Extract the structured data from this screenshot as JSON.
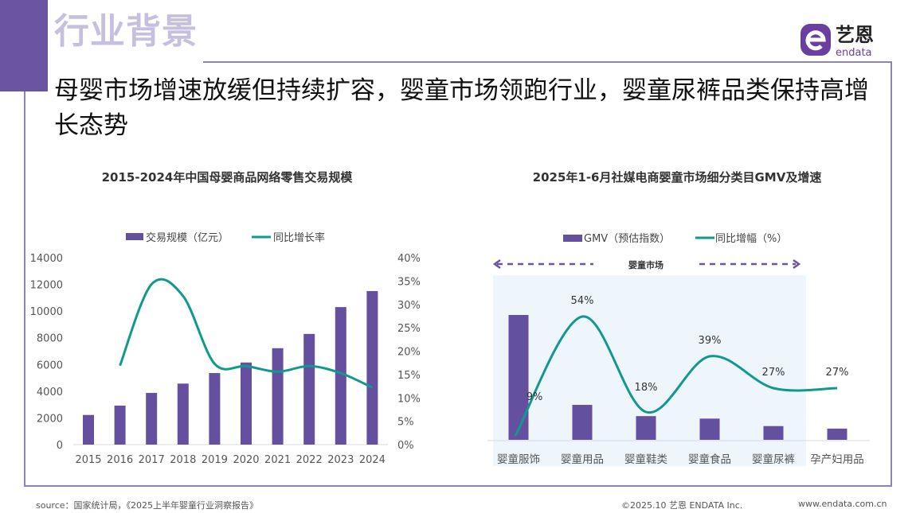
{
  "header": {
    "section_title": "行业背景",
    "headline": "母婴市场增速放缓但持续扩容，婴童市场领跑行业，婴童尿裤品类保持高增长态势",
    "logo_text": "艺恩",
    "logo_subtext": "endata"
  },
  "colors": {
    "accent": "#6a55a3",
    "bar": "#6550a0",
    "line": "#11998e",
    "frame": "#8c82bd",
    "highlight_bg": "#eef5fb"
  },
  "chart_data": [
    {
      "type": "bar+line",
      "title": "2015-2024年中国母婴商品网络零售交易规模",
      "categories": [
        "2015",
        "2016",
        "2017",
        "2018",
        "2019",
        "2020",
        "2021",
        "2022",
        "2023",
        "2024"
      ],
      "series": [
        {
          "name": "交易规模（亿元）",
          "type": "bar",
          "axis": "left",
          "values": [
            2220,
            2920,
            3870,
            4570,
            5360,
            6150,
            7220,
            8290,
            10300,
            11500
          ]
        },
        {
          "name": "同比增长率",
          "type": "line",
          "axis": "right",
          "values": [
            null,
            16.9,
            34.3,
            31.8,
            17.3,
            16.8,
            15.6,
            16.8,
            15.3,
            12.2
          ]
        }
      ],
      "left_axis": {
        "ylim": [
          0,
          14000
        ],
        "ticks": [
          "0",
          "2000",
          "4000",
          "6000",
          "8000",
          "10000",
          "12000",
          "14000"
        ]
      },
      "right_axis": {
        "ylim": [
          0,
          40
        ],
        "ticks": [
          "0%",
          "5%",
          "10%",
          "15%",
          "20%",
          "25%",
          "30%",
          "35%",
          "40%"
        ]
      },
      "legend": "top",
      "grid": false
    },
    {
      "type": "bar+line",
      "title": "2025年1-6月社媒电商婴童市场细分类目GMV及增速",
      "categories": [
        "婴童服饰",
        "婴童用品",
        "婴童鞋类",
        "婴童食品",
        "婴童尿裤",
        "孕产妇用品"
      ],
      "series": [
        {
          "name": "GMV（预估指数）",
          "type": "bar",
          "values": [
            100,
            28,
            19,
            17,
            11,
            9
          ]
        },
        {
          "name": "同比增幅（%）",
          "type": "line",
          "values": [
            9,
            54,
            18,
            39,
            27,
            27
          ],
          "labels": [
            "9%",
            "54%",
            "18%",
            "39%",
            "27%",
            "27%"
          ]
        }
      ],
      "annotation": "婴童市场",
      "legend": "top",
      "grid": false
    }
  ],
  "footer": {
    "source": "source：国家统计局，《2025上半年婴童行业洞察报告》",
    "copyright": "©2025.10  艺恩 ENDATA Inc.",
    "website": "www.endata.com.cn"
  }
}
